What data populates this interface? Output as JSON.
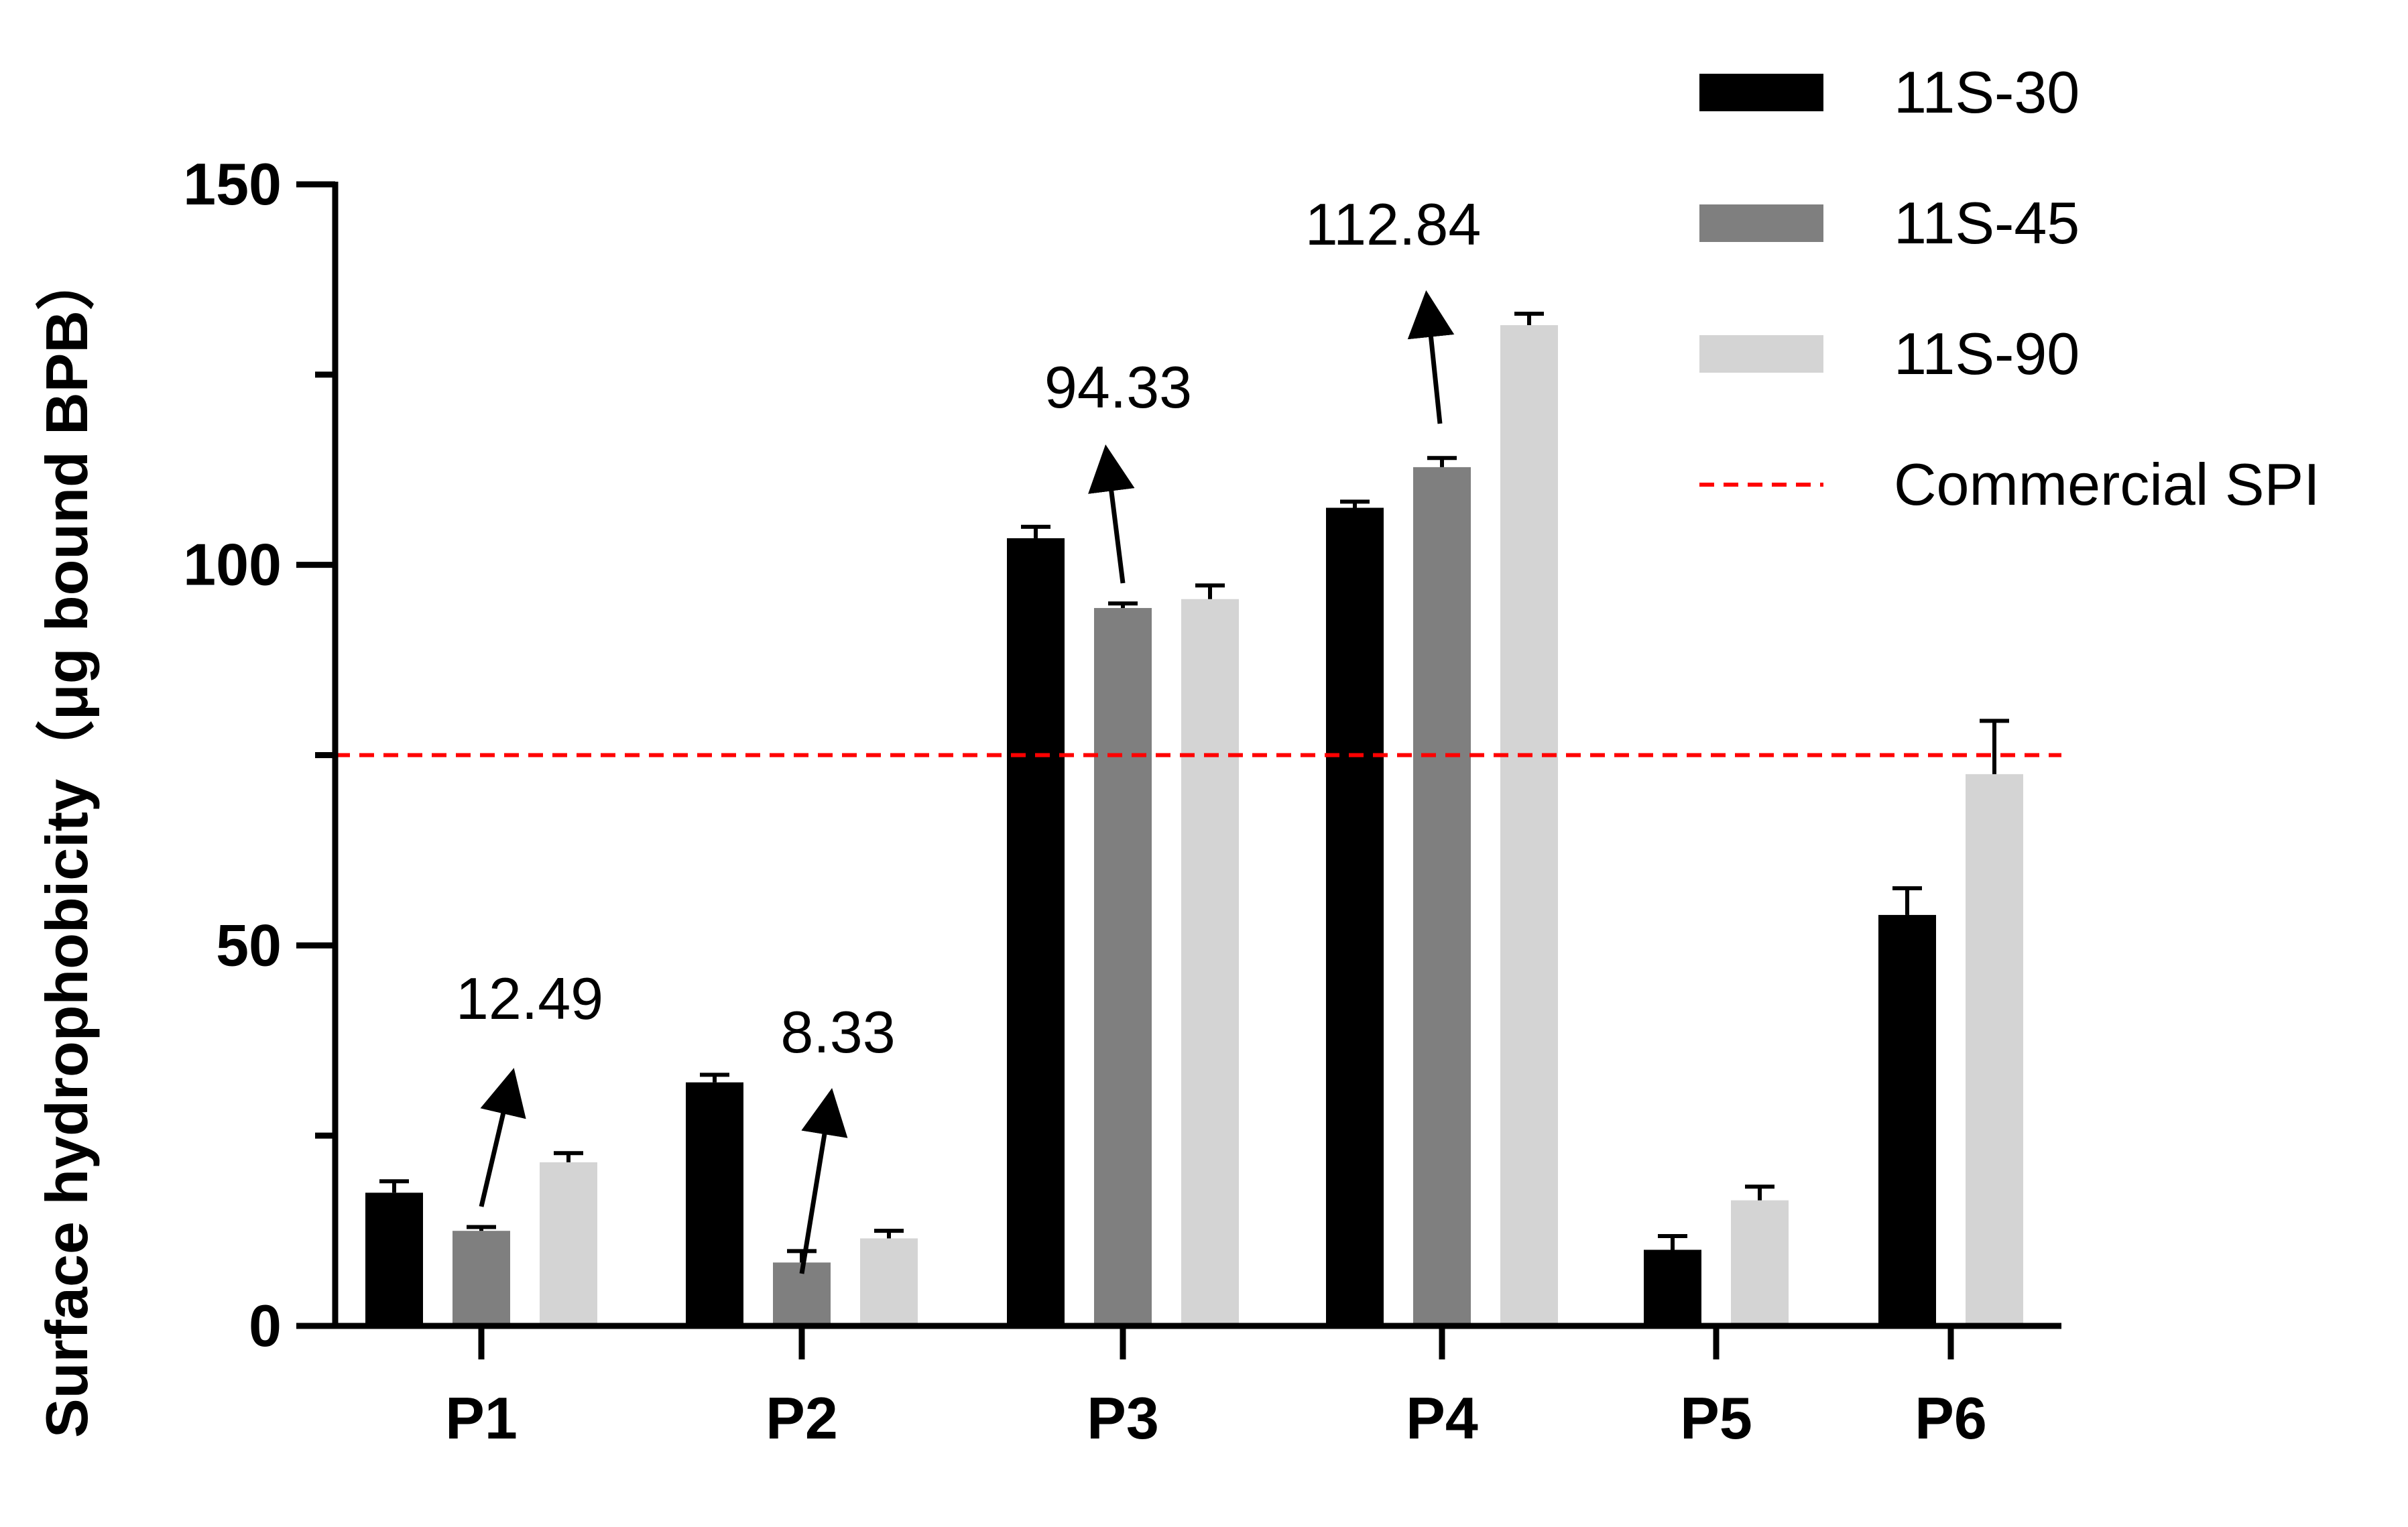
{
  "chart_data": {
    "type": "bar",
    "ylabel": "Surface hydrophobicity（μg bound BPB）",
    "xlabel": "",
    "ylim": [
      0,
      150
    ],
    "yticks": [
      0,
      50,
      100,
      150
    ],
    "categories": [
      "P1",
      "P2",
      "P3",
      "P4",
      "P5",
      "P6"
    ],
    "series": [
      {
        "name": "11S-30",
        "color": "#000000",
        "values": [
          17.5,
          32,
          103.5,
          107.5,
          10,
          54
        ],
        "errors": [
          1.5,
          1,
          1.5,
          0.8,
          1.8,
          3.5
        ]
      },
      {
        "name": "11S-45",
        "color": "#7f7f7f",
        "values": [
          12.49,
          8.33,
          94.33,
          112.84,
          null,
          null
        ],
        "errors": [
          0.5,
          1.5,
          0.6,
          1.2,
          null,
          null
        ]
      },
      {
        "name": "11S-90",
        "color": "#d4d4d4",
        "values": [
          21.5,
          11.5,
          95.5,
          131.5,
          16.5,
          72.5
        ],
        "errors": [
          1.2,
          1,
          1.8,
          1.5,
          1.8,
          7
        ]
      }
    ],
    "reference_line": {
      "name": "Commercial SPI",
      "value": 75,
      "color": "#ff0000",
      "style": "dashed"
    },
    "annotations": [
      {
        "text": "12.49",
        "category": "P1",
        "series": "11S-45"
      },
      {
        "text": "8.33",
        "category": "P2",
        "series": "11S-45"
      },
      {
        "text": "94.33",
        "category": "P3",
        "series": "11S-45"
      },
      {
        "text": "112.84",
        "category": "P4",
        "series": "11S-45"
      }
    ],
    "legend": {
      "position": "top-right"
    },
    "grid": false
  }
}
